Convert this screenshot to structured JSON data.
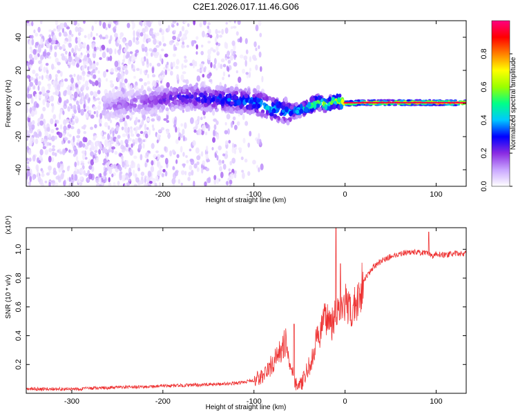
{
  "chart_data": [
    {
      "type": "heatmap",
      "title": "C2E1.2026.017.11.46.G06",
      "xlabel": "Height of straight line (km)",
      "ylabel": "Frequency (Hz)",
      "xlim": [
        -350,
        133
      ],
      "ylim": [
        -50,
        50
      ],
      "xticks": [
        -300,
        -200,
        -100,
        0,
        100
      ],
      "xtick_labels": [
        "-300",
        "-200",
        "-100",
        "0",
        "100"
      ],
      "yticks": [
        -40,
        -20,
        0,
        20,
        40
      ],
      "ytick_labels": [
        "-40",
        "-20",
        "0",
        "20",
        "40"
      ],
      "colorbar": {
        "label": "Normalized spectral amplitude",
        "range": [
          0,
          1
        ],
        "ticks": [
          0.0,
          0.2,
          0.4,
          0.6,
          0.8
        ],
        "tick_labels": [
          "0.0",
          "0.2",
          "0.4",
          "0.6",
          "0.8"
        ],
        "colormap": [
          "#ffffff",
          "#c9a6ff",
          "#8a2be2",
          "#0000ff",
          "#00c8ff",
          "#00ff88",
          "#9aff00",
          "#ffff00",
          "#ff8000",
          "#ff0000",
          "#ff0080"
        ]
      },
      "ridge": {
        "x": [
          -260,
          -180,
          -150,
          -120,
          -100,
          -80,
          -60,
          -50,
          -40,
          -30,
          -20,
          -10,
          0,
          20,
          60,
          100,
          133
        ],
        "freq": [
          -2,
          4,
          3,
          2,
          1,
          -3,
          -5,
          -4,
          -2,
          1,
          -1,
          2,
          0,
          0.5,
          0.5,
          0.5,
          0.5
        ],
        "amplitude": [
          0.15,
          0.3,
          0.35,
          0.4,
          0.45,
          0.5,
          0.45,
          0.5,
          0.6,
          0.7,
          0.65,
          0.8,
          0.85,
          0.95,
          1.0,
          1.0,
          1.0
        ]
      }
    },
    {
      "type": "line",
      "title": "",
      "xlabel": "Height of straight line (km)",
      "ylabel": "SNR (10 * v/v)",
      "scale_note": "(x10⁴)",
      "xlim": [
        -350,
        133
      ],
      "ylim": [
        0,
        1.15
      ],
      "xticks": [
        -300,
        -200,
        -100,
        0,
        100
      ],
      "xtick_labels": [
        "-300",
        "-200",
        "-100",
        "0",
        "100"
      ],
      "yticks": [
        0.2,
        0.4,
        0.6,
        0.8,
        1.0
      ],
      "ytick_labels": [
        "0.2",
        "0.4",
        "0.6",
        "0.8",
        "1.0"
      ],
      "series": [
        {
          "name": "SNR",
          "color": "#ee3333",
          "x": [
            -350,
            -300,
            -250,
            -200,
            -150,
            -120,
            -100,
            -90,
            -80,
            -70,
            -65,
            -60,
            -55,
            -50,
            -45,
            -40,
            -35,
            -30,
            -25,
            -20,
            -15,
            -10,
            -5,
            0,
            5,
            10,
            15,
            20,
            30,
            40,
            50,
            60,
            70,
            80,
            90,
            95,
            100,
            110,
            120,
            133
          ],
          "y": [
            0.03,
            0.03,
            0.04,
            0.05,
            0.06,
            0.07,
            0.09,
            0.12,
            0.2,
            0.3,
            0.36,
            0.2,
            0.08,
            0.05,
            0.1,
            0.18,
            0.25,
            0.4,
            0.45,
            0.55,
            0.48,
            0.6,
            0.5,
            0.65,
            0.55,
            0.6,
            0.68,
            0.78,
            0.87,
            0.92,
            0.95,
            0.97,
            0.98,
            0.98,
            0.97,
            0.95,
            0.97,
            0.96,
            0.97,
            0.97
          ],
          "spikes": [
            {
              "x": -56,
              "y": 0.48
            },
            {
              "x": -10,
              "y": 1.15
            },
            {
              "x": -5,
              "y": 0.9
            },
            {
              "x": 92,
              "y": 1.12
            }
          ]
        }
      ]
    }
  ]
}
